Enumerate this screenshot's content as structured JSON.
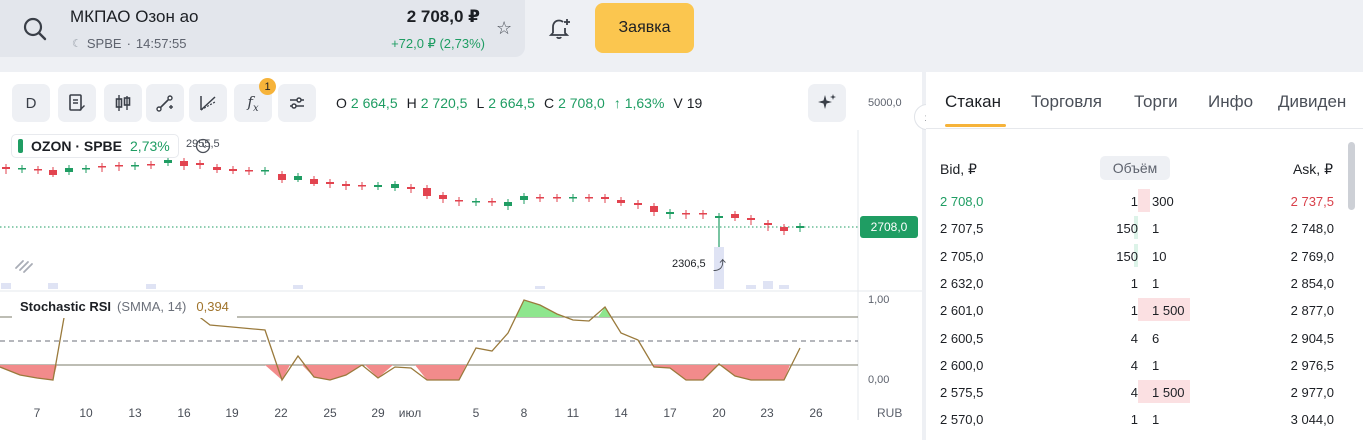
{
  "header": {
    "ticker_name": "МКПАО Озон ао",
    "exchange": "SPBE",
    "time": "14:57:55",
    "price": "2 708,0 ₽",
    "change": "+72,0 ₽ (2,73%)",
    "order_button": "Заявка"
  },
  "toolbar": {
    "interval": "D",
    "indicator_badge": "1"
  },
  "ohlc": {
    "o_label": "O",
    "o": "2 664,5",
    "h_label": "H",
    "h": "2 720,5",
    "l_label": "L",
    "l": "2 664,5",
    "c_label": "C",
    "c": "2 708,0",
    "change": "↑ 1,63%",
    "v_label": "V",
    "v": "19"
  },
  "legend": {
    "symbol": "OZON · SPBE",
    "change": "2,73%",
    "high_note": "2955,5"
  },
  "price_axis": {
    "top": "5000,0",
    "current": "2708,0",
    "low_note": "2306,5"
  },
  "stoch": {
    "name": "Stochastic RSI",
    "params": "(SMMA, 14)",
    "value": "0,394",
    "axis_top": "1,00",
    "axis_bottom": "0,00"
  },
  "dates": [
    "7",
    "10",
    "13",
    "16",
    "19",
    "22",
    "25",
    "29",
    "июл",
    "5",
    "8",
    "11",
    "14",
    "17",
    "20",
    "23",
    "26"
  ],
  "currency": "RUB",
  "chart_data": {
    "type": "candlestick",
    "current_price": 2708.0,
    "open": 2664.5,
    "high": 2720.5,
    "low": 2664.5,
    "close": 2708.0,
    "volume": 19,
    "marked_low": 2306.5
  },
  "orderbook": {
    "tabs": [
      "Стакан",
      "Торговля",
      "Торги",
      "Инфо",
      "Дивиден"
    ],
    "bid_header": "Bid, ₽",
    "volume_header": "Объём",
    "ask_header": "Ask, ₽",
    "rows": [
      {
        "bid": "2 708,0",
        "bid_qty": "1",
        "ask_qty": "300",
        "ask": "2 737,5"
      },
      {
        "bid": "2 707,5",
        "bid_qty": "150",
        "ask_qty": "1",
        "ask": "2 748,0"
      },
      {
        "bid": "2 705,0",
        "bid_qty": "150",
        "ask_qty": "10",
        "ask": "2 769,0"
      },
      {
        "bid": "2 632,0",
        "bid_qty": "1",
        "ask_qty": "1",
        "ask": "2 854,0"
      },
      {
        "bid": "2 601,0",
        "bid_qty": "1",
        "ask_qty": "1 500",
        "ask": "2 877,0"
      },
      {
        "bid": "2 600,5",
        "bid_qty": "4",
        "ask_qty": "6",
        "ask": "2 904,5"
      },
      {
        "bid": "2 600,0",
        "bid_qty": "4",
        "ask_qty": "1",
        "ask": "2 976,5"
      },
      {
        "bid": "2 575,5",
        "bid_qty": "4",
        "ask_qty": "1 500",
        "ask": "2 977,0"
      },
      {
        "bid": "2 570,0",
        "bid_qty": "1",
        "ask_qty": "1",
        "ask": "3 044,0"
      }
    ]
  }
}
